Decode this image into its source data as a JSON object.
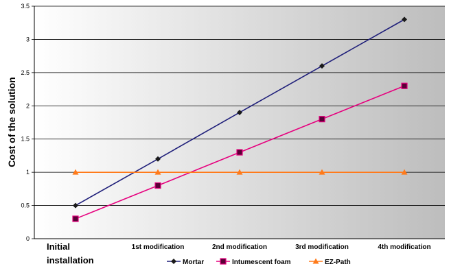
{
  "chart_data": {
    "type": "line",
    "categories": [
      "Initial installation",
      "1st modification",
      "2nd modification",
      "3rd modification",
      "4th modification"
    ],
    "series": [
      {
        "name": "Mortar",
        "values": [
          0.5,
          1.2,
          1.9,
          2.6,
          3.3
        ],
        "color": "#1f1f7a",
        "marker": "diamond"
      },
      {
        "name": "Intumescent foam",
        "values": [
          0.3,
          0.8,
          1.3,
          1.8,
          2.3
        ],
        "color": "#e6007e",
        "marker": "square"
      },
      {
        "name": "EZ-Path",
        "values": [
          1,
          1,
          1,
          1,
          1
        ],
        "color": "#ff7a1a",
        "marker": "triangle"
      }
    ],
    "xlabel": "",
    "ylabel": "Cost of the solution",
    "ylim": [
      0,
      3.5
    ],
    "yticks": [
      "0",
      "0.5",
      "1",
      "1.5",
      "2",
      "2.5",
      "3",
      "3.5"
    ],
    "grid": true,
    "legend": "bottom",
    "background": "gradient white to gray"
  }
}
